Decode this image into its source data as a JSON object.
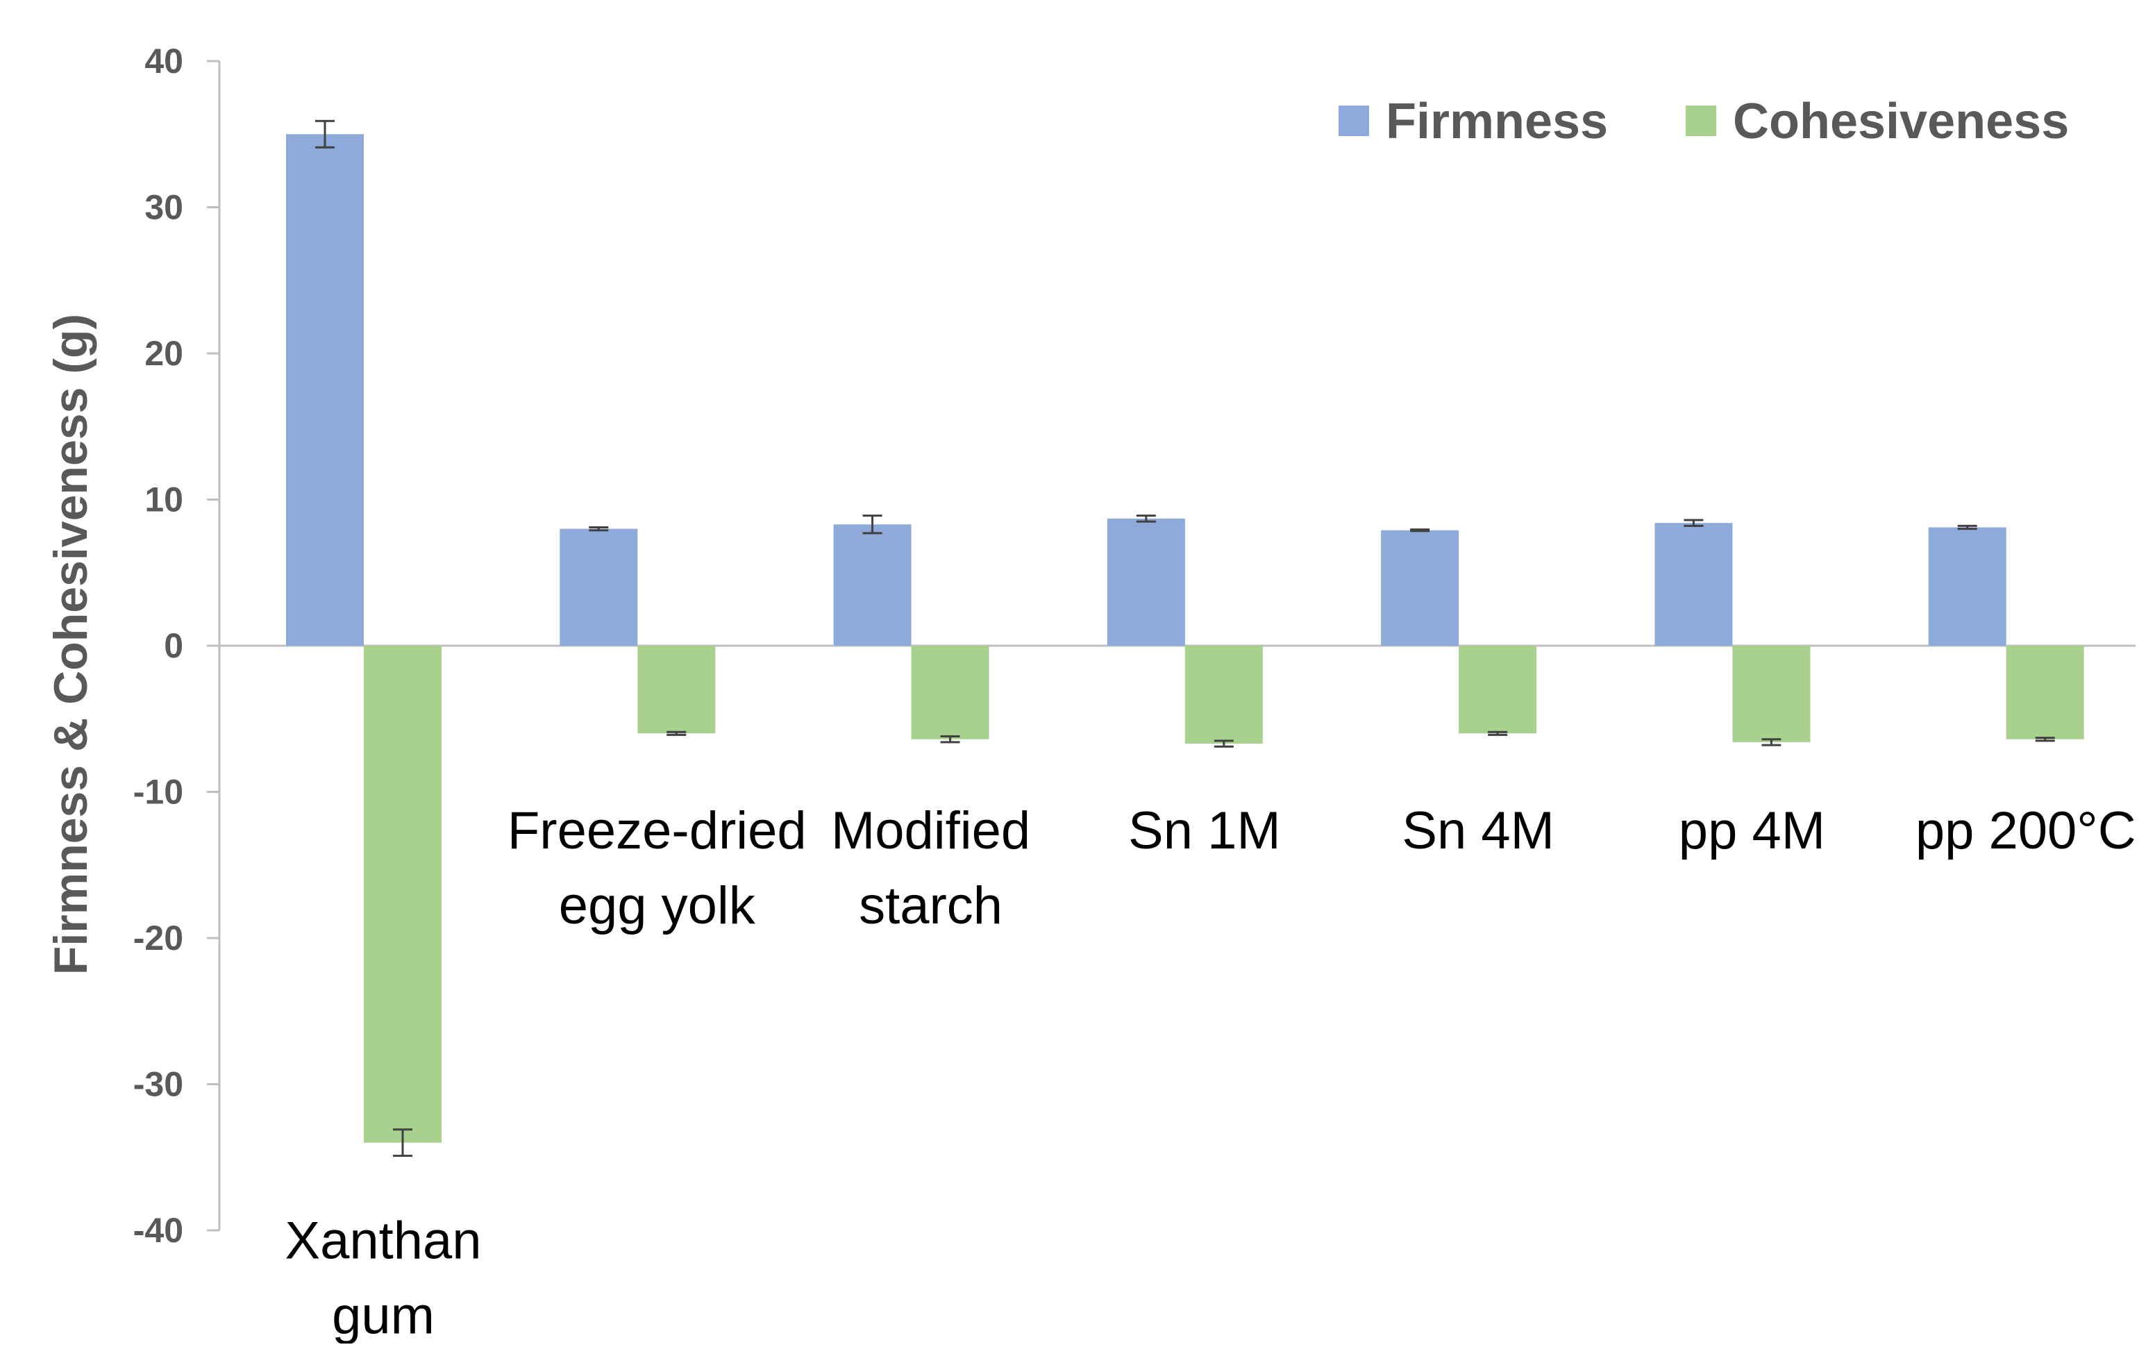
{
  "chart_data": {
    "type": "bar",
    "title": "",
    "xlabel": "",
    "ylabel": "Firmness & Cohesiveness (g)",
    "ylim": [
      -40,
      40
    ],
    "yticks": [
      40,
      30,
      20,
      10,
      0,
      -10,
      -20,
      -30,
      -40
    ],
    "grid": false,
    "legend_position": "top-right",
    "categories": [
      [
        "Xanthan",
        "gum"
      ],
      [
        "Freeze-dried",
        "egg yolk"
      ],
      [
        "Modified",
        "starch"
      ],
      [
        "Sn 1M"
      ],
      [
        "Sn 4M"
      ],
      [
        "pp 4M"
      ],
      [
        "pp 200°C"
      ]
    ],
    "series": [
      {
        "name": "Firmness",
        "color": "#8eaadb",
        "values": [
          35.0,
          8.0,
          8.3,
          8.7,
          7.9,
          8.4,
          8.1
        ],
        "errors": [
          0.9,
          0.1,
          0.6,
          0.2,
          0.05,
          0.2,
          0.1
        ]
      },
      {
        "name": "Cohesiveness",
        "color": "#a9d18e",
        "values": [
          -34.0,
          -6.0,
          -6.4,
          -6.7,
          -6.0,
          -6.6,
          -6.4
        ],
        "errors": [
          0.9,
          0.1,
          0.2,
          0.2,
          0.1,
          0.2,
          0.1
        ]
      }
    ]
  },
  "colors": {
    "axis": "#bfbfbf",
    "error_bar": "#404040",
    "tick_text": "#595959"
  }
}
